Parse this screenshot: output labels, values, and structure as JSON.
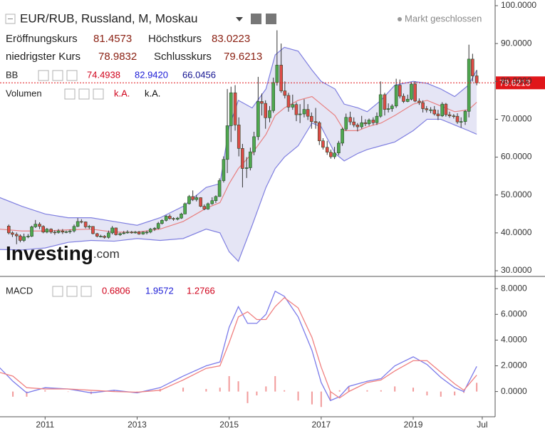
{
  "chart_data": {
    "type": "candlestick",
    "title": "EUR/RUB, Russland, M, Moskau",
    "status": "Markt geschlossen",
    "ohlc_labels": [
      "Eröffnungskurs",
      "Höchstkurs",
      "niedrigster Kurs",
      "Schlusskurs"
    ],
    "up_color": "#4fa84f",
    "down_color": "#de4b47",
    "price_line_color": "#e0161a",
    "x": [
      2010.21,
      2010.29,
      2010.38,
      2010.46,
      2010.54,
      2010.63,
      2010.71,
      2010.79,
      2010.88,
      2010.96,
      2011.04,
      2011.13,
      2011.21,
      2011.29,
      2011.38,
      2011.46,
      2011.54,
      2011.63,
      2011.71,
      2011.79,
      2011.88,
      2011.96,
      2012.04,
      2012.13,
      2012.21,
      2012.29,
      2012.38,
      2012.46,
      2012.54,
      2012.63,
      2012.71,
      2012.79,
      2012.88,
      2012.96,
      2013.04,
      2013.13,
      2013.21,
      2013.29,
      2013.38,
      2013.46,
      2013.54,
      2013.63,
      2013.71,
      2013.79,
      2013.88,
      2013.96,
      2014.04,
      2014.13,
      2014.21,
      2014.29,
      2014.38,
      2014.46,
      2014.54,
      2014.63,
      2014.71,
      2014.79,
      2014.88,
      2014.96,
      2015.04,
      2015.13,
      2015.21,
      2015.29,
      2015.38,
      2015.46,
      2015.54,
      2015.63,
      2015.71,
      2015.79,
      2015.88,
      2015.96,
      2016.04,
      2016.13,
      2016.21,
      2016.29,
      2016.38,
      2016.46,
      2016.54,
      2016.63,
      2016.71,
      2016.79,
      2016.88,
      2016.96,
      2017.04,
      2017.13,
      2017.21,
      2017.29,
      2017.38,
      2017.46,
      2017.54,
      2017.63,
      2017.71,
      2017.79,
      2017.88,
      2017.96,
      2018.04,
      2018.13,
      2018.21,
      2018.29,
      2018.38,
      2018.46,
      2018.54,
      2018.63,
      2018.71,
      2018.79,
      2018.88,
      2018.96,
      2019.04,
      2019.13,
      2019.21,
      2019.29,
      2019.38,
      2019.46,
      2019.54,
      2019.63,
      2019.71,
      2019.79,
      2019.88,
      2019.96,
      2020.04,
      2020.13,
      2020.21,
      2020.29,
      2020.38
    ],
    "ohlc": [
      [
        41.8,
        42.2,
        39.6,
        40.0
      ],
      [
        40.0,
        40.4,
        38.9,
        39.6
      ],
      [
        39.6,
        40.1,
        37.0,
        39.2
      ],
      [
        39.2,
        39.6,
        37.5,
        38.0
      ],
      [
        38.0,
        39.8,
        37.6,
        39.0
      ],
      [
        39.0,
        39.7,
        38.6,
        39.1
      ],
      [
        39.1,
        41.9,
        38.9,
        41.6
      ],
      [
        41.6,
        43.4,
        41.3,
        42.3
      ],
      [
        42.3,
        42.8,
        41.0,
        41.7
      ],
      [
        41.7,
        42.0,
        39.9,
        40.2
      ],
      [
        40.2,
        41.3,
        39.9,
        41.0
      ],
      [
        41.0,
        41.2,
        39.8,
        40.2
      ],
      [
        40.2,
        40.7,
        39.5,
        40.1
      ],
      [
        40.1,
        41.0,
        39.8,
        40.5
      ],
      [
        40.5,
        41.0,
        39.7,
        40.2
      ],
      [
        40.2,
        40.6,
        39.9,
        40.3
      ],
      [
        40.3,
        40.9,
        39.8,
        40.5
      ],
      [
        40.5,
        42.2,
        40.1,
        41.7
      ],
      [
        41.7,
        43.9,
        41.5,
        43.0
      ],
      [
        43.0,
        43.6,
        42.5,
        42.9
      ],
      [
        42.9,
        43.0,
        41.2,
        41.6
      ],
      [
        41.6,
        42.1,
        41.0,
        41.7
      ],
      [
        41.7,
        41.8,
        39.6,
        39.8
      ],
      [
        39.8,
        40.0,
        38.8,
        39.1
      ],
      [
        39.1,
        39.5,
        38.8,
        39.1
      ],
      [
        39.1,
        39.4,
        38.5,
        38.8
      ],
      [
        38.8,
        40.6,
        38.5,
        40.0
      ],
      [
        40.0,
        41.8,
        39.6,
        41.3
      ],
      [
        41.3,
        41.4,
        39.3,
        39.5
      ],
      [
        39.5,
        40.1,
        39.2,
        39.8
      ],
      [
        39.8,
        40.5,
        39.6,
        40.0
      ],
      [
        40.0,
        40.7,
        39.8,
        40.2
      ],
      [
        40.2,
        40.5,
        39.8,
        40.0
      ],
      [
        40.0,
        40.5,
        39.8,
        40.2
      ],
      [
        40.2,
        40.5,
        39.5,
        39.7
      ],
      [
        39.7,
        40.4,
        39.5,
        40.2
      ],
      [
        40.2,
        40.6,
        39.6,
        40.2
      ],
      [
        40.2,
        41.3,
        39.9,
        41.0
      ],
      [
        41.0,
        41.5,
        40.5,
        41.2
      ],
      [
        41.2,
        42.9,
        40.9,
        42.5
      ],
      [
        42.5,
        43.6,
        42.2,
        43.3
      ],
      [
        43.3,
        44.7,
        43.0,
        44.4
      ],
      [
        44.4,
        44.9,
        43.5,
        43.8
      ],
      [
        43.8,
        44.1,
        43.2,
        43.6
      ],
      [
        43.6,
        44.2,
        43.3,
        43.9
      ],
      [
        43.9,
        45.3,
        43.7,
        45.0
      ],
      [
        45.0,
        48.0,
        44.9,
        47.7
      ],
      [
        47.7,
        50.0,
        47.5,
        49.6
      ],
      [
        49.6,
        51.2,
        48.4,
        48.8
      ],
      [
        48.8,
        50.0,
        48.3,
        49.3
      ],
      [
        49.3,
        49.4,
        46.8,
        47.0
      ],
      [
        47.0,
        47.5,
        46.0,
        46.3
      ],
      [
        46.3,
        48.0,
        46.1,
        47.7
      ],
      [
        47.7,
        49.4,
        47.4,
        48.5
      ],
      [
        48.5,
        49.9,
        47.9,
        49.6
      ],
      [
        49.6,
        54.4,
        49.5,
        53.8
      ],
      [
        53.8,
        60.2,
        53.3,
        59.4
      ],
      [
        59.4,
        78.0,
        55.8,
        68.3
      ],
      [
        68.3,
        78.6,
        64.0,
        77.0
      ],
      [
        77.0,
        79.0,
        67.0,
        68.5
      ],
      [
        68.5,
        70.5,
        60.2,
        62.3
      ],
      [
        62.3,
        63.5,
        52.0,
        57.0
      ],
      [
        57.0,
        60.0,
        54.5,
        57.2
      ],
      [
        57.2,
        62.5,
        56.5,
        61.4
      ],
      [
        61.4,
        66.7,
        60.5,
        65.4
      ],
      [
        65.4,
        81.2,
        64.5,
        74.7
      ],
      [
        74.7,
        76.8,
        71.0,
        74.2
      ],
      [
        74.2,
        75.0,
        67.5,
        70.4
      ],
      [
        70.4,
        73.5,
        69.2,
        72.3
      ],
      [
        72.3,
        81.0,
        71.7,
        79.7
      ],
      [
        79.7,
        93.5,
        78.9,
        84.3
      ],
      [
        84.3,
        90.0,
        77.0,
        77.5
      ],
      [
        77.5,
        80.0,
        75.5,
        76.3
      ],
      [
        76.3,
        77.0,
        72.0,
        73.2
      ],
      [
        73.2,
        76.5,
        72.5,
        73.9
      ],
      [
        73.9,
        74.5,
        69.5,
        71.2
      ],
      [
        71.2,
        74.0,
        69.0,
        71.4
      ],
      [
        71.4,
        75.3,
        70.5,
        72.6
      ],
      [
        72.6,
        74.0,
        69.8,
        70.8
      ],
      [
        70.8,
        71.8,
        67.5,
        69.4
      ],
      [
        69.4,
        73.0,
        67.5,
        69.1
      ],
      [
        69.1,
        69.5,
        63.2,
        64.3
      ],
      [
        64.3,
        65.0,
        62.0,
        62.6
      ],
      [
        62.6,
        64.3,
        60.6,
        61.3
      ],
      [
        61.3,
        62.0,
        59.6,
        60.1
      ],
      [
        60.1,
        62.7,
        59.5,
        61.1
      ],
      [
        61.1,
        64.3,
        60.5,
        63.7
      ],
      [
        63.7,
        67.8,
        63.0,
        67.4
      ],
      [
        67.4,
        71.5,
        66.9,
        70.5
      ],
      [
        70.5,
        72.0,
        68.5,
        69.3
      ],
      [
        69.3,
        70.5,
        67.9,
        68.5
      ],
      [
        68.5,
        69.0,
        66.8,
        68.0
      ],
      [
        68.0,
        70.9,
        67.5,
        69.1
      ],
      [
        69.1,
        70.0,
        68.2,
        68.8
      ],
      [
        68.8,
        70.2,
        68.3,
        69.8
      ],
      [
        69.8,
        70.5,
        68.5,
        69.1
      ],
      [
        69.1,
        71.8,
        68.5,
        70.8
      ],
      [
        70.8,
        80.0,
        70.4,
        76.5
      ],
      [
        76.5,
        77.0,
        71.0,
        72.6
      ],
      [
        72.6,
        74.2,
        71.8,
        72.8
      ],
      [
        72.8,
        74.0,
        72.0,
        73.5
      ],
      [
        73.5,
        80.7,
        73.0,
        79.0
      ],
      [
        79.0,
        80.5,
        75.5,
        76.1
      ],
      [
        76.1,
        76.8,
        74.3,
        74.7
      ],
      [
        74.7,
        76.5,
        74.5,
        75.3
      ],
      [
        75.3,
        79.8,
        75.0,
        79.3
      ],
      [
        79.3,
        80.0,
        74.5,
        74.8
      ],
      [
        74.8,
        75.5,
        73.8,
        74.4
      ],
      [
        74.4,
        75.0,
        71.8,
        72.8
      ],
      [
        72.8,
        73.5,
        71.8,
        72.5
      ],
      [
        72.5,
        73.2,
        71.6,
        72.5
      ],
      [
        72.5,
        73.5,
        71.0,
        71.4
      ],
      [
        71.4,
        72.5,
        69.8,
        70.9
      ],
      [
        70.9,
        74.5,
        70.6,
        74.0
      ],
      [
        74.0,
        74.3,
        70.7,
        71.2
      ],
      [
        71.2,
        72.0,
        70.4,
        70.9
      ],
      [
        70.9,
        71.4,
        70.2,
        70.8
      ],
      [
        70.8,
        71.6,
        68.8,
        69.3
      ],
      [
        69.3,
        70.5,
        67.8,
        69.4
      ],
      [
        69.4,
        72.5,
        68.5,
        72.1
      ],
      [
        72.1,
        89.7,
        70.5,
        85.9
      ],
      [
        85.9,
        87.3,
        80.0,
        81.46
      ],
      [
        81.4573,
        83.0223,
        78.9832,
        79.6213
      ]
    ],
    "bands": {
      "name": "BB",
      "fill": "#dcdcf2",
      "edge_color": "#7f7fe0",
      "mid_color": "#e88080",
      "x": [
        2010.0,
        2010.5,
        2011.0,
        2011.5,
        2012.0,
        2012.5,
        2013.0,
        2013.5,
        2014.0,
        2014.5,
        2014.8,
        2015.0,
        2015.2,
        2015.5,
        2015.8,
        2016.0,
        2016.2,
        2016.5,
        2016.8,
        2017.0,
        2017.3,
        2017.5,
        2017.8,
        2018.0,
        2018.3,
        2018.6,
        2019.0,
        2019.3,
        2019.6,
        2019.9,
        2020.2,
        2020.38
      ],
      "upper": [
        49.4,
        47,
        45,
        44,
        44,
        43,
        42,
        44,
        47,
        52,
        53,
        68,
        75,
        73,
        78,
        87,
        89,
        88,
        83,
        80,
        78,
        74,
        73,
        72,
        75,
        79,
        80,
        79.5,
        78,
        76,
        79,
        82.942
      ],
      "mid": [
        41,
        40.5,
        40.5,
        40.8,
        41,
        40.2,
        40.2,
        41,
        43,
        46.5,
        48,
        53,
        57,
        61,
        66,
        71,
        73,
        75,
        76,
        74,
        71,
        67,
        67,
        68,
        69,
        71,
        74,
        75,
        73.5,
        72,
        72.5,
        74.4938
      ],
      "lower": [
        35.6,
        35.5,
        36,
        37.5,
        38,
        37.8,
        38.5,
        38,
        38.5,
        41,
        40,
        35,
        32.5,
        42,
        52,
        57,
        60,
        63,
        69,
        68,
        61,
        59,
        61,
        62,
        63,
        64,
        67,
        70,
        70,
        68.5,
        67,
        66.0456
      ],
      "legend": {
        "values": [
          74.4938,
          82.942,
          66.0456
        ],
        "value_labels": [
          "74.4938",
          "82.9420",
          "66.0456"
        ],
        "colors": [
          "#d0021b",
          "#1a1ad6",
          "#101090"
        ]
      }
    },
    "volume": {
      "name": "Volumen",
      "labels": [
        "k.A.",
        "k.A."
      ]
    },
    "xlim": [
      2010.02,
      2020.78
    ],
    "xticks": [
      2011,
      2013,
      2015,
      2017,
      2019,
      {
        "value": 2020.5,
        "label": "Jul"
      }
    ],
    "ylim": [
      28.5,
      101.5
    ],
    "yticks": [
      {
        "value": 30,
        "label": "30.0000"
      },
      {
        "value": 40,
        "label": "40.0000"
      },
      {
        "value": 50,
        "label": "50.0000"
      },
      {
        "value": 60,
        "label": "60.0000"
      },
      {
        "value": 70,
        "label": "70.0000"
      },
      {
        "value": 80,
        "label": "80.0000"
      },
      {
        "value": 90,
        "label": "90.0000"
      },
      {
        "value": 100,
        "label": "100.0000"
      }
    ],
    "macd": {
      "name": "MACD",
      "macd_color": "#7b7bea",
      "signal_color": "#f08080",
      "histogram_color": "#f29a9a",
      "x": [
        2010.0,
        2010.3,
        2010.6,
        2011.0,
        2011.5,
        2012.0,
        2012.5,
        2013.0,
        2013.5,
        2014.0,
        2014.5,
        2014.8,
        2015.0,
        2015.2,
        2015.4,
        2015.6,
        2015.8,
        2016.0,
        2016.2,
        2016.5,
        2016.8,
        2017.0,
        2017.2,
        2017.4,
        2017.6,
        2018.0,
        2018.3,
        2018.6,
        2019.0,
        2019.3,
        2019.6,
        2019.9,
        2020.1,
        2020.38
      ],
      "macd": [
        1.9,
        0.8,
        -0.1,
        0.3,
        0.2,
        -0.1,
        0.1,
        -0.1,
        0.3,
        1.2,
        2.0,
        2.3,
        5.0,
        6.6,
        5.3,
        5.3,
        6.0,
        7.8,
        7.4,
        5.8,
        3.2,
        0.7,
        -0.7,
        -0.4,
        0.4,
        0.8,
        1.0,
        2.0,
        2.7,
        2.1,
        1.1,
        0.3,
        0.0,
        1.9572
      ],
      "signal": [
        1.5,
        1.2,
        0.3,
        0.2,
        0.2,
        0.1,
        0.0,
        -0.05,
        0.1,
        0.9,
        1.8,
        2.0,
        3.8,
        5.8,
        6.2,
        5.6,
        5.6,
        6.6,
        7.3,
        6.5,
        4.2,
        1.9,
        0.0,
        -0.5,
        0.0,
        0.7,
        0.9,
        1.6,
        2.4,
        2.4,
        1.5,
        0.6,
        0.1,
        1.2766
      ],
      "histogram": [
        0.4,
        -0.4,
        -0.4,
        0.1,
        0,
        -0.2,
        0.1,
        -0.05,
        0.2,
        0.3,
        0.2,
        0.3,
        1.2,
        0.8,
        -0.9,
        -0.3,
        0.4,
        1.2,
        0.1,
        -0.7,
        -1.0,
        -1.2,
        -0.7,
        0.1,
        0.4,
        0.1,
        0.1,
        0.4,
        0.3,
        -0.3,
        -0.4,
        -0.3,
        -0.1,
        0.6806
      ],
      "ylim": [
        -1.96,
        8.95
      ],
      "yticks": [
        {
          "value": 0,
          "label": "0.0000"
        },
        {
          "value": 2,
          "label": "2.0000"
        },
        {
          "value": 4,
          "label": "4.0000"
        },
        {
          "value": 6,
          "label": "6.0000"
        },
        {
          "value": 8,
          "label": "8.0000"
        }
      ]
    },
    "watermark": [
      "Investing",
      ".com"
    ]
  }
}
